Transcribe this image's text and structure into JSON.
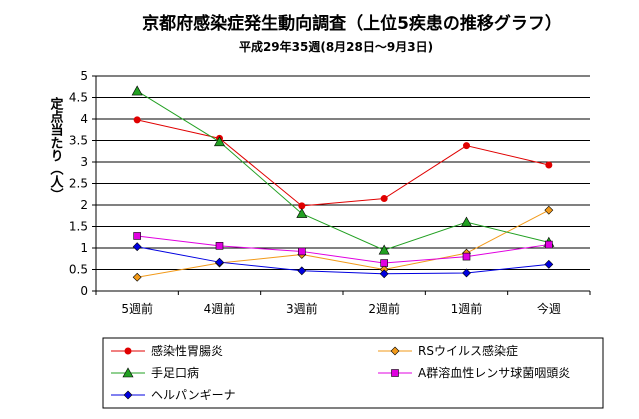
{
  "chart_data": {
    "type": "line",
    "title": "京都府感染症発生動向調査（上位5疾患の推移グラフ）",
    "subtitle": "平成29年35週(8月28日～9月3日)",
    "ylabel": "定点当たり（人）",
    "xlabel": "",
    "categories": [
      "5週前",
      "4週前",
      "3週前",
      "2週前",
      "1週前",
      "今週"
    ],
    "ylim": [
      0,
      5
    ],
    "yticks": [
      "0",
      "0.5",
      "1",
      "1.5",
      "2",
      "2.5",
      "3",
      "3.5",
      "4",
      "4.5",
      "5"
    ],
    "grid": true,
    "legend_position": "bottom",
    "series": [
      {
        "name": "感染性胃腸炎",
        "values": [
          3.98,
          3.55,
          1.98,
          2.15,
          3.38,
          2.93
        ],
        "color": "#e00000",
        "marker": "circle"
      },
      {
        "name": "RSウイルス感染症",
        "values": [
          0.32,
          0.65,
          0.85,
          0.5,
          0.88,
          1.88
        ],
        "color": "#f29a1a",
        "marker": "diamond"
      },
      {
        "name": "手足口病",
        "values": [
          4.65,
          3.47,
          1.8,
          0.95,
          1.6,
          1.13
        ],
        "color": "#22a022",
        "marker": "triangle"
      },
      {
        "name": "A群溶血性レンサ球菌咽頭炎",
        "values": [
          1.28,
          1.05,
          0.92,
          0.65,
          0.8,
          1.08
        ],
        "color": "#e000e0",
        "marker": "square"
      },
      {
        "name": "ヘルパンギーナ",
        "values": [
          1.03,
          0.67,
          0.47,
          0.4,
          0.42,
          0.62
        ],
        "color": "#0000e0",
        "marker": "diamond"
      }
    ]
  }
}
